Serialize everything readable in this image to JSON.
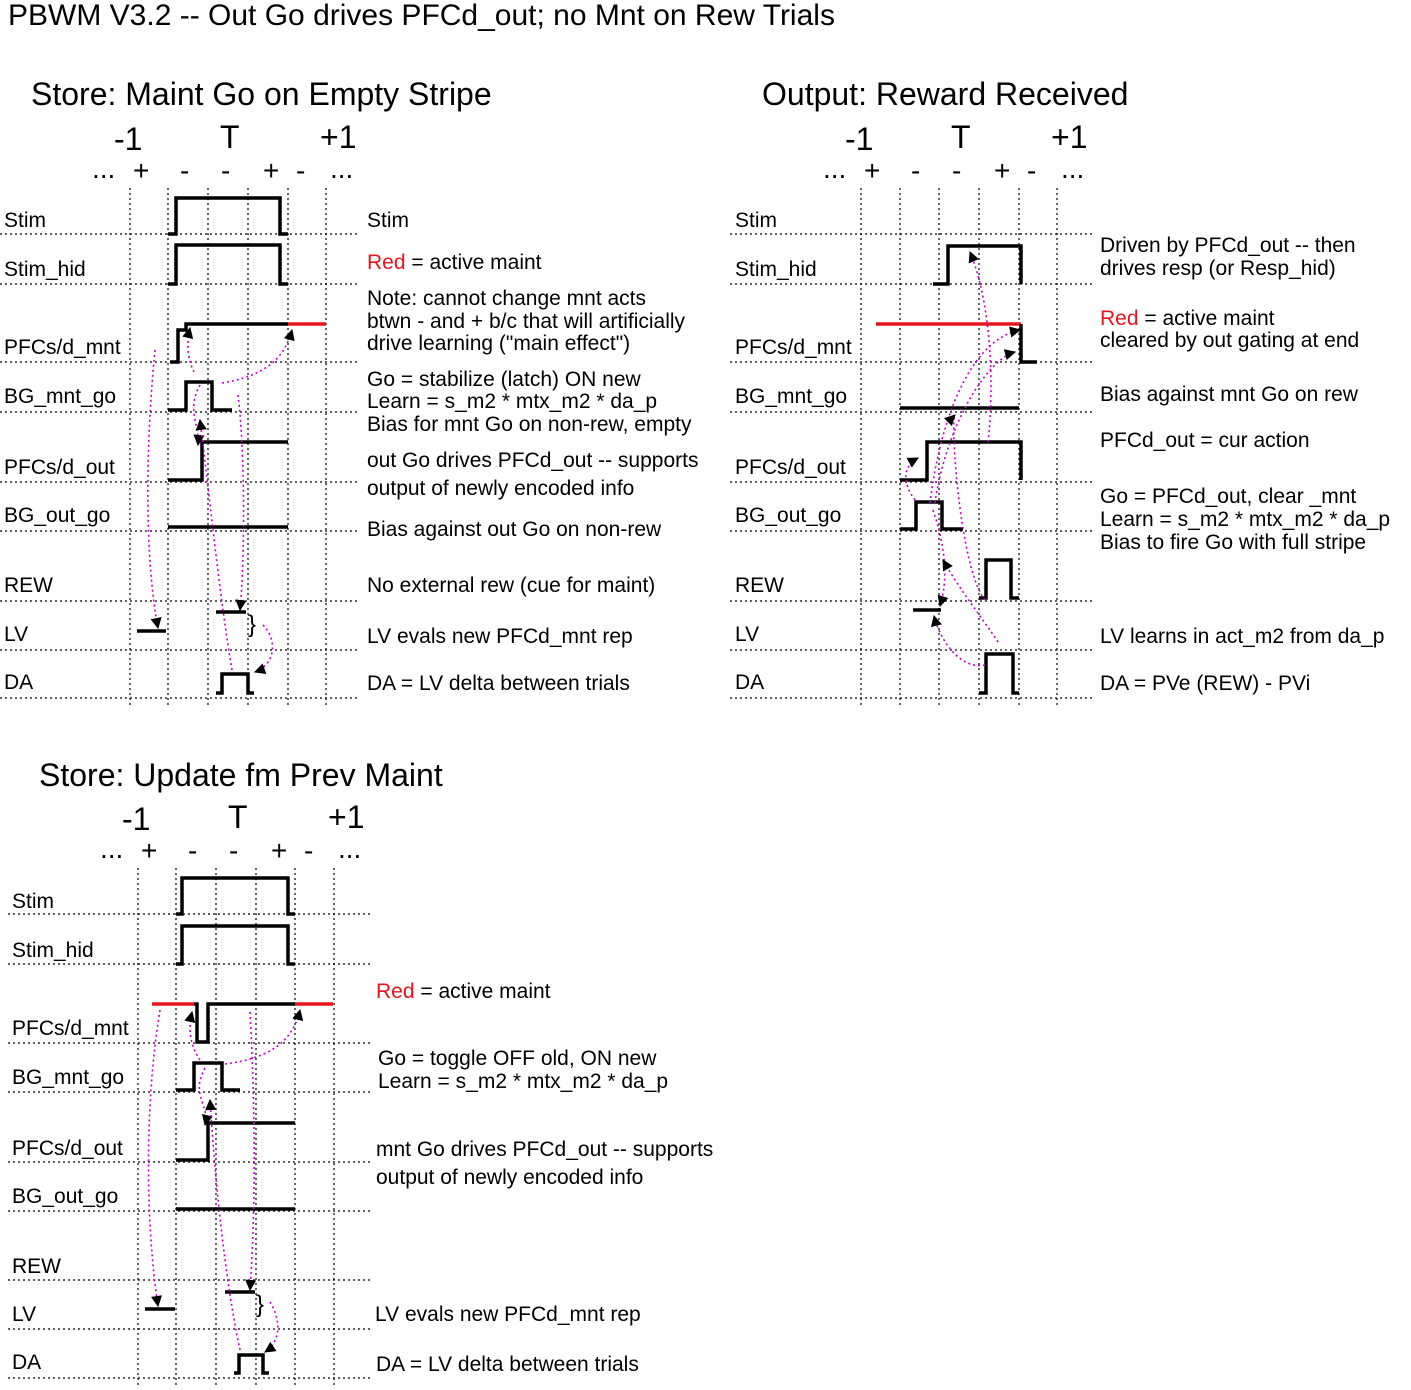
{
  "title": "PBWM V3.2 -- Out Go drives PFCd_out; no Mnt on Rew Trials",
  "timeline": {
    "major": [
      "-1",
      "T",
      "+1"
    ],
    "minor": [
      "...",
      "+",
      "-",
      "-",
      "+",
      "-",
      "..."
    ]
  },
  "rows": [
    "Stim",
    "Stim_hid",
    "PFCs/d_mnt",
    "BG_mnt_go",
    "PFCs/d_out",
    "BG_out_go",
    "REW",
    "LV",
    "DA"
  ],
  "colors": {
    "signal": "#000000",
    "active_maint": "#e8141b",
    "arrow": "#c800c8"
  },
  "panels": [
    {
      "id": "store-empty",
      "title": "Store: Maint Go on Empty Stripe",
      "notes": [
        {
          "row": "Stim",
          "text": "Stim"
        },
        {
          "row": "Stim_hid",
          "red": "Red",
          "text": " = active maint"
        },
        {
          "row": "PFCs/d_mnt",
          "lines": [
            "Note: cannot change mnt acts",
            "btwn - and + b/c that will artificially",
            "drive learning (\"main effect\")"
          ]
        },
        {
          "row": "BG_mnt_go",
          "lines": [
            "Go = stabilize (latch) ON new",
            "Learn = s_m2 * mtx_m2 * da_p",
            "Bias for mnt Go on non-rew, empty"
          ]
        },
        {
          "row": "PFCs/d_out",
          "lines": [
            "out Go drives PFCd_out -- supports",
            "output of newly encoded info"
          ]
        },
        {
          "row": "BG_out_go",
          "text": "Bias against out Go on non-rew"
        },
        {
          "row": "REW",
          "text": "No external rew (cue for maint)"
        },
        {
          "row": "LV",
          "text": "LV evals new PFCd_mnt rep"
        },
        {
          "row": "DA",
          "text": "DA = LV delta between trials"
        }
      ]
    },
    {
      "id": "output-reward",
      "title": "Output: Reward Received",
      "notes": [
        {
          "row": "Stim_hid",
          "lines": [
            "Driven by PFCd_out -- then",
            " drives resp (or Resp_hid)"
          ]
        },
        {
          "row": "PFCs/d_mnt",
          "red": "Red",
          "text": " = active maint",
          "lines": [
            "cleared by out gating at end"
          ]
        },
        {
          "row": "BG_mnt_go",
          "text": "Bias against mnt Go on rew"
        },
        {
          "row": "PFCs/d_out",
          "text": "PFCd_out = cur action"
        },
        {
          "row": "BG_out_go",
          "lines": [
            "Go = PFCd_out, clear _mnt",
            "Learn = s_m2 * mtx_m2 * da_p",
            "Bias to fire Go with full stripe"
          ]
        },
        {
          "row": "LV",
          "text": "LV learns in act_m2 from da_p"
        },
        {
          "row": "DA",
          "text": "DA = PVe (REW) - PVi"
        }
      ]
    },
    {
      "id": "store-update",
      "title": "Store: Update fm Prev Maint",
      "notes": [
        {
          "row": "PFCs/d_mnt",
          "red": "Red",
          "text": " = active maint"
        },
        {
          "row": "BG_mnt_go",
          "lines": [
            "Go = toggle OFF old, ON new",
            "Learn = s_m2 * mtx_m2 * da_p"
          ]
        },
        {
          "row": "PFCs/d_out",
          "lines": [
            "mnt Go drives PFCd_out -- supports",
            "output of newly encoded info"
          ]
        },
        {
          "row": "LV",
          "text": "LV evals new PFCd_mnt rep"
        },
        {
          "row": "DA",
          "text": "DA = LV delta between trials"
        }
      ]
    }
  ]
}
